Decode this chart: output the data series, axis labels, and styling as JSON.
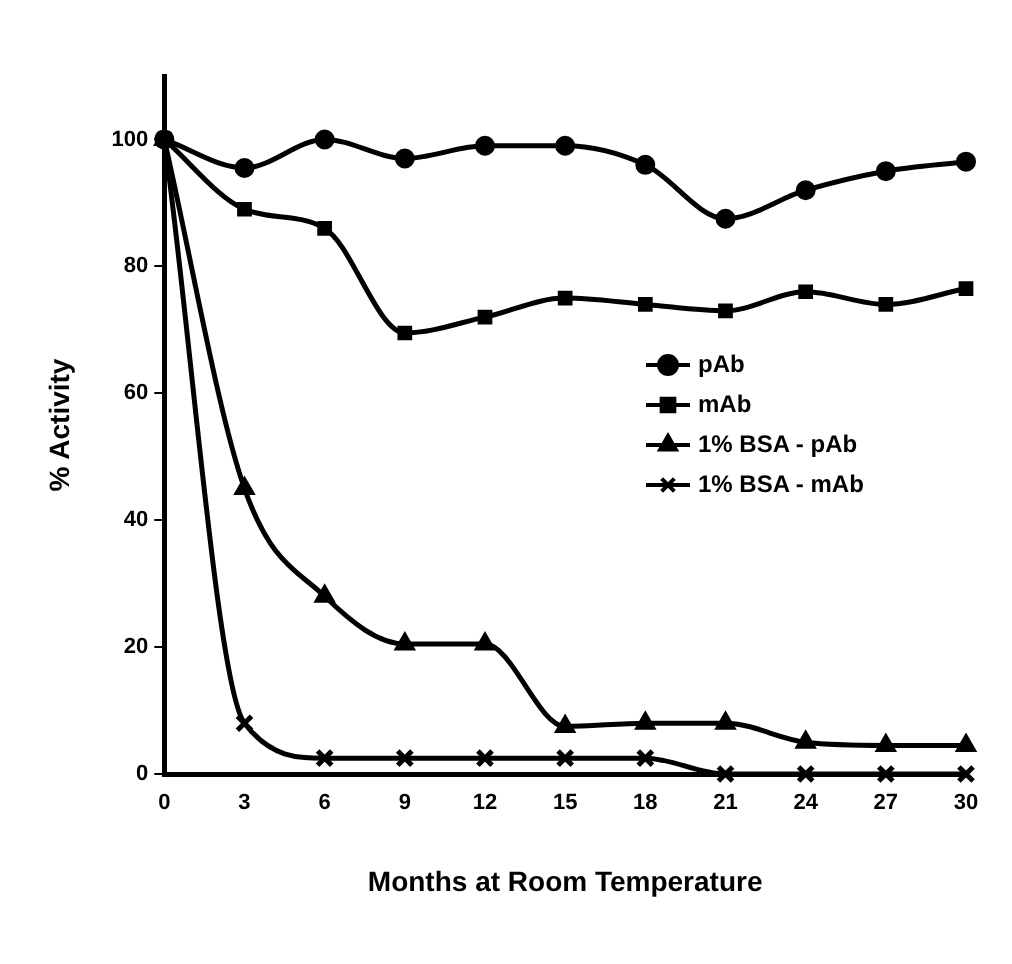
{
  "chart_data": {
    "type": "line",
    "xlabel": "Months at Room Temperature",
    "ylabel": "% Activity",
    "x": [
      0,
      3,
      6,
      9,
      12,
      15,
      18,
      21,
      24,
      27,
      30
    ],
    "series": [
      {
        "name": "pAb",
        "color": "#000000",
        "marker": "circle",
        "values": [
          100,
          95.5,
          100,
          97,
          99,
          99,
          96,
          87.5,
          92,
          95,
          96.5
        ]
      },
      {
        "name": "mAb",
        "color": "#000000",
        "marker": "square",
        "values": [
          100,
          89,
          86,
          69.5,
          72,
          75,
          74,
          73,
          76,
          74,
          76.5
        ]
      },
      {
        "name": "1% BSA - pAb",
        "color": "#000000",
        "marker": "triangle",
        "values": [
          100,
          45,
          28,
          20.5,
          20.5,
          7.5,
          8,
          8,
          5,
          4.5,
          4.5
        ]
      },
      {
        "name": "1% BSA - mAb",
        "color": "#000000",
        "marker": "cross",
        "values": [
          100,
          8,
          2.5,
          2.5,
          2.5,
          2.5,
          2.5,
          0,
          0,
          0,
          0
        ]
      }
    ],
    "xlim": [
      0,
      30
    ],
    "xticks": [
      0,
      3,
      6,
      9,
      12,
      15,
      18,
      21,
      24,
      27,
      30
    ],
    "ylim": [
      0,
      110
    ],
    "yticks": [
      0,
      20,
      40,
      60,
      80,
      100
    ],
    "grid": false,
    "legend": "right"
  }
}
